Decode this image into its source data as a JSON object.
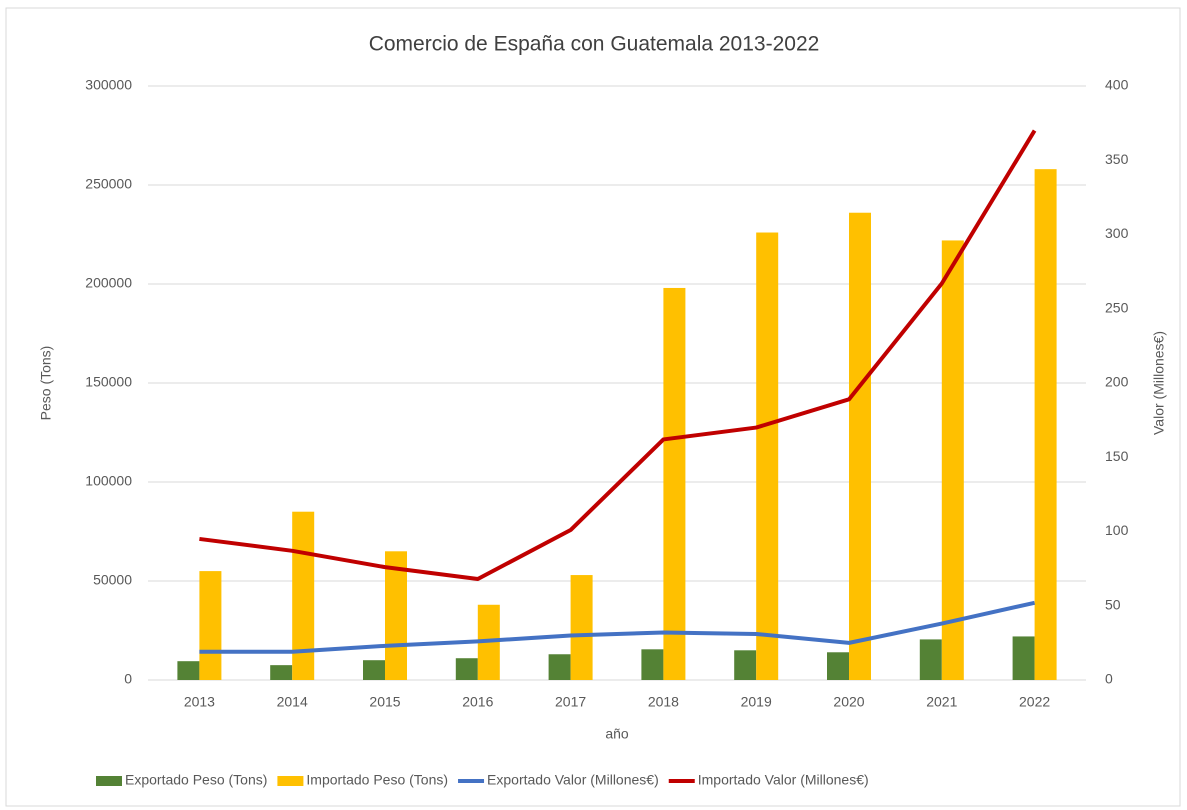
{
  "chart_data": {
    "type": "bar_line",
    "title": "Comercio de España con Guatemala 2013-2022",
    "x_label": "año",
    "y_label": "Peso (Tons)",
    "y2_label": "Valor (Millones€)",
    "categories": [
      "2013",
      "2014",
      "2015",
      "2016",
      "2017",
      "2018",
      "2019",
      "2020",
      "2021",
      "2022"
    ],
    "ylim": [
      0,
      300000
    ],
    "yticks": [
      0,
      50000,
      100000,
      150000,
      200000,
      250000,
      300000
    ],
    "y2lim": [
      0,
      400
    ],
    "y2ticks": [
      0,
      50,
      100,
      150,
      200,
      250,
      300,
      350,
      400
    ],
    "grid": true,
    "legend": "bottom",
    "series": [
      {
        "name": "Exportado Peso (Tons)",
        "type": "bar",
        "color": "#548235",
        "values": [
          9500,
          7500,
          10000,
          11000,
          13000,
          15500,
          15000,
          14000,
          20500,
          22000
        ]
      },
      {
        "name": "Importado Peso (Tons)",
        "type": "bar",
        "color": "#ffc000",
        "values": [
          55000,
          85000,
          65000,
          38000,
          53000,
          198000,
          226000,
          236000,
          222000,
          258000
        ]
      },
      {
        "name": "Exportado Valor (Millones€)",
        "type": "line",
        "axis": "y2",
        "color": "#4472c4",
        "values": [
          19,
          19,
          23,
          26,
          30,
          32,
          31,
          25,
          38,
          52
        ]
      },
      {
        "name": "Importado Valor (Millones€)",
        "type": "line",
        "axis": "y2",
        "color": "#c00000",
        "values": [
          95,
          87,
          76,
          68,
          101,
          162,
          170,
          189,
          267,
          370
        ]
      }
    ]
  }
}
